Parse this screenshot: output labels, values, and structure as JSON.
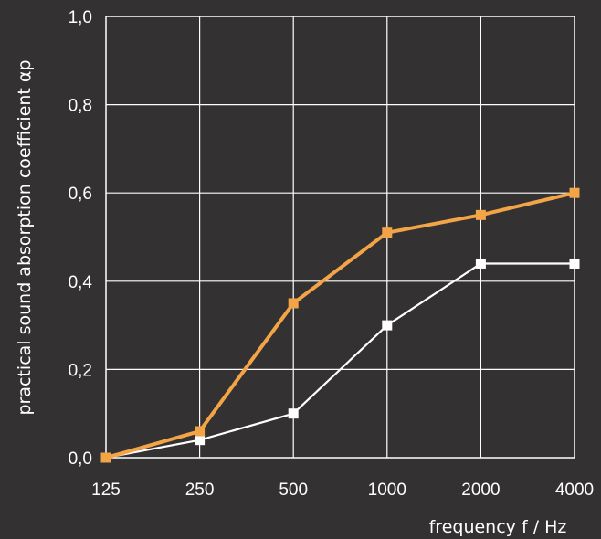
{
  "chart_data": {
    "type": "line",
    "xlabel": "frequency f / Hz",
    "ylabel": "practical sound absorption coefficient αp",
    "categories": [
      "125",
      "250",
      "500",
      "1000",
      "2000",
      "4000"
    ],
    "y_tick_labels": [
      "0,0",
      "0,2",
      "0,4",
      "0,6",
      "0,8",
      "1,0"
    ],
    "ylim": [
      0,
      1.0
    ],
    "grid": true,
    "legend": "none",
    "series": [
      {
        "color": "#f3a447",
        "marker": "square",
        "values": [
          0.0,
          0.06,
          0.35,
          0.51,
          0.55,
          0.6
        ]
      },
      {
        "color": "#ffffff",
        "marker": "square",
        "values": [
          0.0,
          0.04,
          0.1,
          0.3,
          0.44,
          0.44
        ]
      }
    ]
  }
}
